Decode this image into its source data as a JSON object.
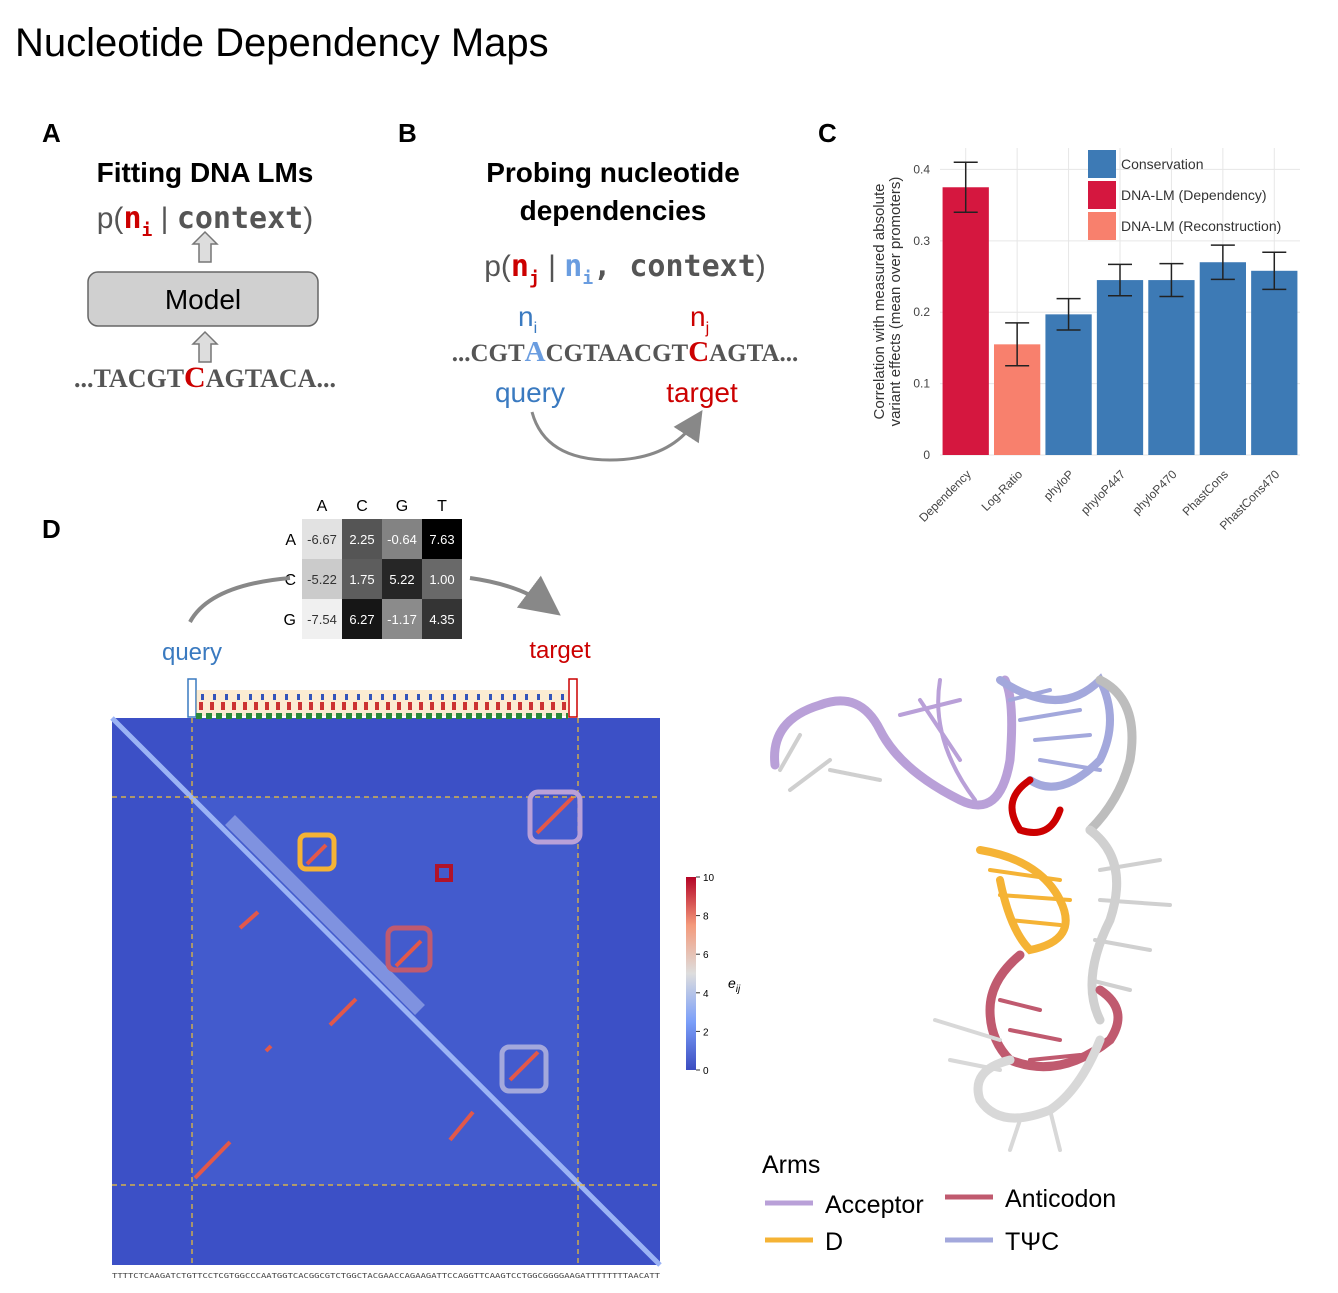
{
  "title": "Nucleotide Dependency Maps",
  "panel_a": {
    "label": "A",
    "heading": "Fitting DNA LMs",
    "formula": {
      "open": "p(",
      "n": "n",
      "i": "i",
      "bar": " | ",
      "context": "context",
      "close": ")"
    },
    "model": "Model",
    "sequence": {
      "before": "...TACGT",
      "mid": "C",
      "after": "AGTACA..."
    }
  },
  "panel_b": {
    "label": "B",
    "heading": [
      "Probing nucleotide",
      "dependencies"
    ],
    "formula": {
      "open": "p(",
      "nj": "n",
      "j": "j",
      "bar": " | ",
      "ni": "n",
      "i": "i",
      "context": ", context",
      "close": ")"
    },
    "query_symbol": {
      "n": "n",
      "sub": "i"
    },
    "target_symbol": {
      "n": "n",
      "sub": "j"
    },
    "sequence": {
      "before": "...CGT",
      "query": "A",
      "middle": "CGTAACGT",
      "target": "C",
      "after": "AGTA..."
    },
    "query": "query",
    "target": "target"
  },
  "chart_data": {
    "type": "bar",
    "panel_label": "C",
    "ylabel": [
      "Correlation with measured absolute",
      "variant effects (mean over promoters)"
    ],
    "categories": [
      "Dependency",
      "Log-Ratio",
      "phyloP",
      "phyloP447",
      "phyloP470",
      "PhastCons",
      "PhastCons470"
    ],
    "series": [
      {
        "name": "Conservation",
        "color": "#3d7ab5",
        "values": [
          null,
          null,
          0.197,
          0.245,
          0.245,
          0.27,
          0.258
        ],
        "errors": [
          null,
          null,
          0.022,
          0.022,
          0.023,
          0.024,
          0.026
        ]
      },
      {
        "name": "DNA-LM (Dependency)",
        "color": "#d5173f",
        "values": [
          0.375,
          null,
          null,
          null,
          null,
          null,
          null
        ],
        "errors": [
          0.035,
          null,
          null,
          null,
          null,
          null,
          null
        ]
      },
      {
        "name": "DNA-LM (Reconstruction)",
        "color": "#f8806d",
        "values": [
          null,
          0.155,
          null,
          null,
          null,
          null,
          null
        ],
        "errors": [
          null,
          0.03,
          null,
          null,
          null,
          null,
          null
        ]
      }
    ],
    "ylim": [
      0,
      0.43
    ],
    "yticks": [
      0,
      0.1,
      0.2,
      0.3,
      0.4
    ],
    "grid": true,
    "legend": "upper right"
  },
  "panel_d": {
    "label": "D",
    "matrix": {
      "columns": [
        "A",
        "C",
        "G",
        "T"
      ],
      "rows": [
        {
          "label": "A",
          "values": [
            "-6.67",
            "2.25",
            "-0.64",
            "7.63"
          ]
        },
        {
          "label": "C",
          "values": [
            "-5.22",
            "1.75",
            "5.22",
            "1.00"
          ]
        },
        {
          "label": "G",
          "values": [
            "-7.54",
            "6.27",
            "-1.17",
            "4.35"
          ]
        }
      ]
    },
    "query": "query",
    "target": "target",
    "sequence": "TTTTCTCAAGATCTGTTCCTCGTGGCCCAATGGTCACGGCGTCTGGCTACGAACCAGAAGATTCCAGGTTCAAGTCCTGGCGGGGAAGATTTTTTTTAACATT",
    "colorbar": {
      "label": "e",
      "sub": "ij",
      "lim": [
        0,
        10
      ],
      "ticks": [
        0,
        2,
        4,
        6,
        8,
        10
      ]
    },
    "arms": {
      "title": "Arms",
      "items": [
        {
          "name": "Acceptor",
          "color": "#b9a0d8"
        },
        {
          "name": "Anticodon",
          "color": "#c05a6f"
        },
        {
          "name": "D",
          "color": "#f5b335"
        },
        {
          "name": "TΨC",
          "color": "#a3a8dc"
        }
      ]
    }
  }
}
